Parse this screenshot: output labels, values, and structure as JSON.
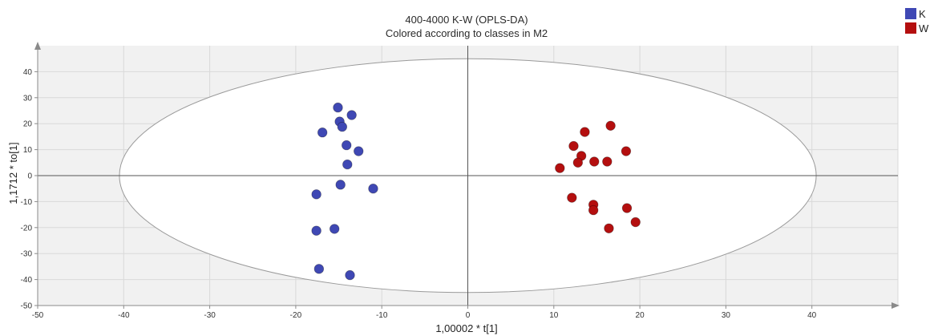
{
  "chart_data": {
    "type": "scatter",
    "title": "400-4000 K-W (OPLS-DA)",
    "subtitle": "Colored according to classes in M2",
    "xlabel": "1,00002 * t[1]",
    "ylabel": "1,1712 * to[1]",
    "xlim": [
      -50,
      50
    ],
    "ylim": [
      -50,
      50
    ],
    "xticks": [
      -50,
      -40,
      -30,
      -20,
      -10,
      0,
      10,
      20,
      30,
      40
    ],
    "yticks": [
      -50,
      -40,
      -30,
      -20,
      -10,
      0,
      10,
      20,
      30,
      40
    ],
    "grid": true,
    "legend_position": "top-right",
    "ellipse": {
      "rx": 40.5,
      "ry": 45
    },
    "series": [
      {
        "name": "K",
        "color": "#3f48b4",
        "points": [
          [
            -15.1,
            26.2
          ],
          [
            -13.5,
            23.3
          ],
          [
            -14.9,
            20.8
          ],
          [
            -14.6,
            18.8
          ],
          [
            -16.9,
            16.6
          ],
          [
            -14.1,
            11.7
          ],
          [
            -12.7,
            9.4
          ],
          [
            -14.0,
            4.3
          ],
          [
            -14.8,
            -3.5
          ],
          [
            -11.0,
            -5.0
          ],
          [
            -17.6,
            -7.2
          ],
          [
            -15.5,
            -20.5
          ],
          [
            -17.6,
            -21.2
          ],
          [
            -17.3,
            -35.9
          ],
          [
            -13.7,
            -38.3
          ]
        ]
      },
      {
        "name": "W",
        "color": "#b40f0f",
        "points": [
          [
            16.6,
            19.2
          ],
          [
            13.6,
            16.8
          ],
          [
            12.3,
            11.4
          ],
          [
            18.4,
            9.4
          ],
          [
            13.2,
            7.6
          ],
          [
            12.8,
            5.0
          ],
          [
            14.7,
            5.4
          ],
          [
            16.2,
            5.4
          ],
          [
            10.7,
            2.9
          ],
          [
            12.1,
            -8.5
          ],
          [
            14.6,
            -11.2
          ],
          [
            14.6,
            -13.3
          ],
          [
            18.5,
            -12.5
          ],
          [
            19.5,
            -17.9
          ],
          [
            16.4,
            -20.3
          ]
        ]
      }
    ]
  }
}
